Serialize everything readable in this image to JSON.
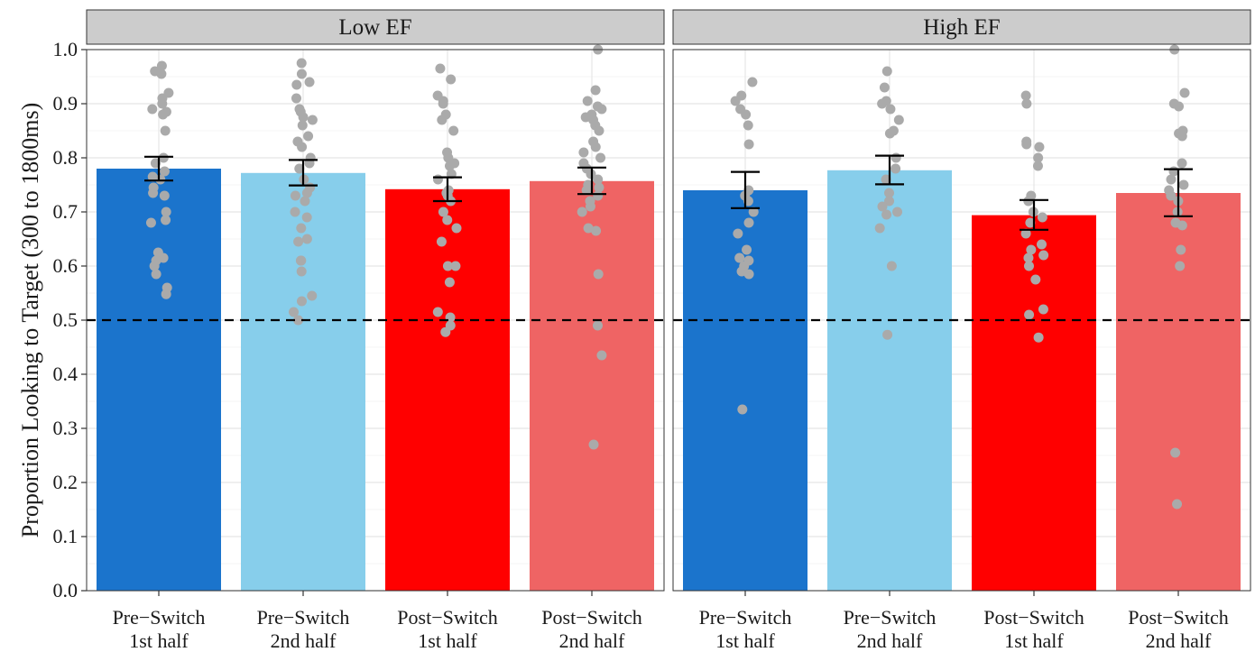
{
  "chart_data": {
    "type": "bar",
    "ylabel": "Proportion Looking to Target (300 to 1800ms)",
    "ylim": [
      0,
      1
    ],
    "yticks": [
      "0.0",
      "0.1",
      "0.2",
      "0.3",
      "0.4",
      "0.5",
      "0.6",
      "0.7",
      "0.8",
      "0.9",
      "1.0"
    ],
    "reference_line": 0.5,
    "categories": [
      {
        "line1": "Pre−Switch",
        "line2": "1st half"
      },
      {
        "line1": "Pre−Switch",
        "line2": "2nd half"
      },
      {
        "line1": "Post−Switch",
        "line2": "1st half"
      },
      {
        "line1": "Post−Switch",
        "line2": "2nd half"
      }
    ],
    "colors": [
      "#1b74cc",
      "#87ceeb",
      "#ff0000",
      "#ef6464"
    ],
    "point_color": "#aaaaaa",
    "panels": [
      {
        "title": "Low EF",
        "bars": [
          {
            "mean": 0.78,
            "se_low": 0.758,
            "se_high": 0.802
          },
          {
            "mean": 0.772,
            "se_low": 0.749,
            "se_high": 0.796
          },
          {
            "mean": 0.742,
            "se_low": 0.72,
            "se_high": 0.764
          },
          {
            "mean": 0.757,
            "se_low": 0.733,
            "se_high": 0.782
          }
        ],
        "points": [
          [
            0.97,
            0.96,
            0.955,
            0.92,
            0.91,
            0.9,
            0.89,
            0.885,
            0.88,
            0.85,
            0.8,
            0.79,
            0.775,
            0.765,
            0.76,
            0.745,
            0.735,
            0.73,
            0.7,
            0.685,
            0.68,
            0.625,
            0.615,
            0.61,
            0.6,
            0.585,
            0.56,
            0.548
          ],
          [
            0.975,
            0.955,
            0.94,
            0.935,
            0.91,
            0.89,
            0.885,
            0.875,
            0.87,
            0.86,
            0.84,
            0.83,
            0.82,
            0.8,
            0.79,
            0.78,
            0.76,
            0.745,
            0.735,
            0.73,
            0.72,
            0.7,
            0.69,
            0.67,
            0.65,
            0.645,
            0.61,
            0.61,
            0.59,
            0.545,
            0.535,
            0.515,
            0.5
          ],
          [
            0.965,
            0.945,
            0.915,
            0.905,
            0.9,
            0.88,
            0.87,
            0.85,
            0.81,
            0.8,
            0.79,
            0.785,
            0.77,
            0.76,
            0.74,
            0.735,
            0.73,
            0.72,
            0.7,
            0.685,
            0.67,
            0.645,
            0.6,
            0.6,
            0.57,
            0.515,
            0.505,
            0.49,
            0.478
          ],
          [
            1.0,
            0.925,
            0.905,
            0.895,
            0.89,
            0.88,
            0.875,
            0.87,
            0.86,
            0.85,
            0.83,
            0.82,
            0.81,
            0.8,
            0.79,
            0.78,
            0.77,
            0.76,
            0.75,
            0.745,
            0.74,
            0.73,
            0.72,
            0.71,
            0.7,
            0.67,
            0.665,
            0.585,
            0.49,
            0.435,
            0.27
          ]
        ]
      },
      {
        "title": "High EF",
        "bars": [
          {
            "mean": 0.74,
            "se_low": 0.707,
            "se_high": 0.774
          },
          {
            "mean": 0.777,
            "se_low": 0.751,
            "se_high": 0.804
          },
          {
            "mean": 0.694,
            "se_low": 0.667,
            "se_high": 0.722
          },
          {
            "mean": 0.735,
            "se_low": 0.692,
            "se_high": 0.779
          }
        ],
        "points": [
          [
            0.94,
            0.915,
            0.905,
            0.89,
            0.88,
            0.86,
            0.825,
            0.74,
            0.73,
            0.72,
            0.7,
            0.68,
            0.66,
            0.63,
            0.615,
            0.61,
            0.6,
            0.59,
            0.585,
            0.335
          ],
          [
            0.96,
            0.93,
            0.905,
            0.9,
            0.89,
            0.87,
            0.85,
            0.845,
            0.8,
            0.78,
            0.76,
            0.735,
            0.72,
            0.71,
            0.7,
            0.695,
            0.67,
            0.6,
            0.473
          ],
          [
            0.915,
            0.9,
            0.83,
            0.825,
            0.82,
            0.8,
            0.785,
            0.73,
            0.72,
            0.7,
            0.69,
            0.68,
            0.66,
            0.64,
            0.63,
            0.62,
            0.615,
            0.6,
            0.575,
            0.52,
            0.51,
            0.468
          ],
          [
            1.0,
            0.92,
            0.9,
            0.895,
            0.85,
            0.845,
            0.84,
            0.79,
            0.775,
            0.76,
            0.75,
            0.74,
            0.73,
            0.72,
            0.7,
            0.68,
            0.675,
            0.63,
            0.6,
            0.255,
            0.16
          ]
        ]
      }
    ]
  }
}
